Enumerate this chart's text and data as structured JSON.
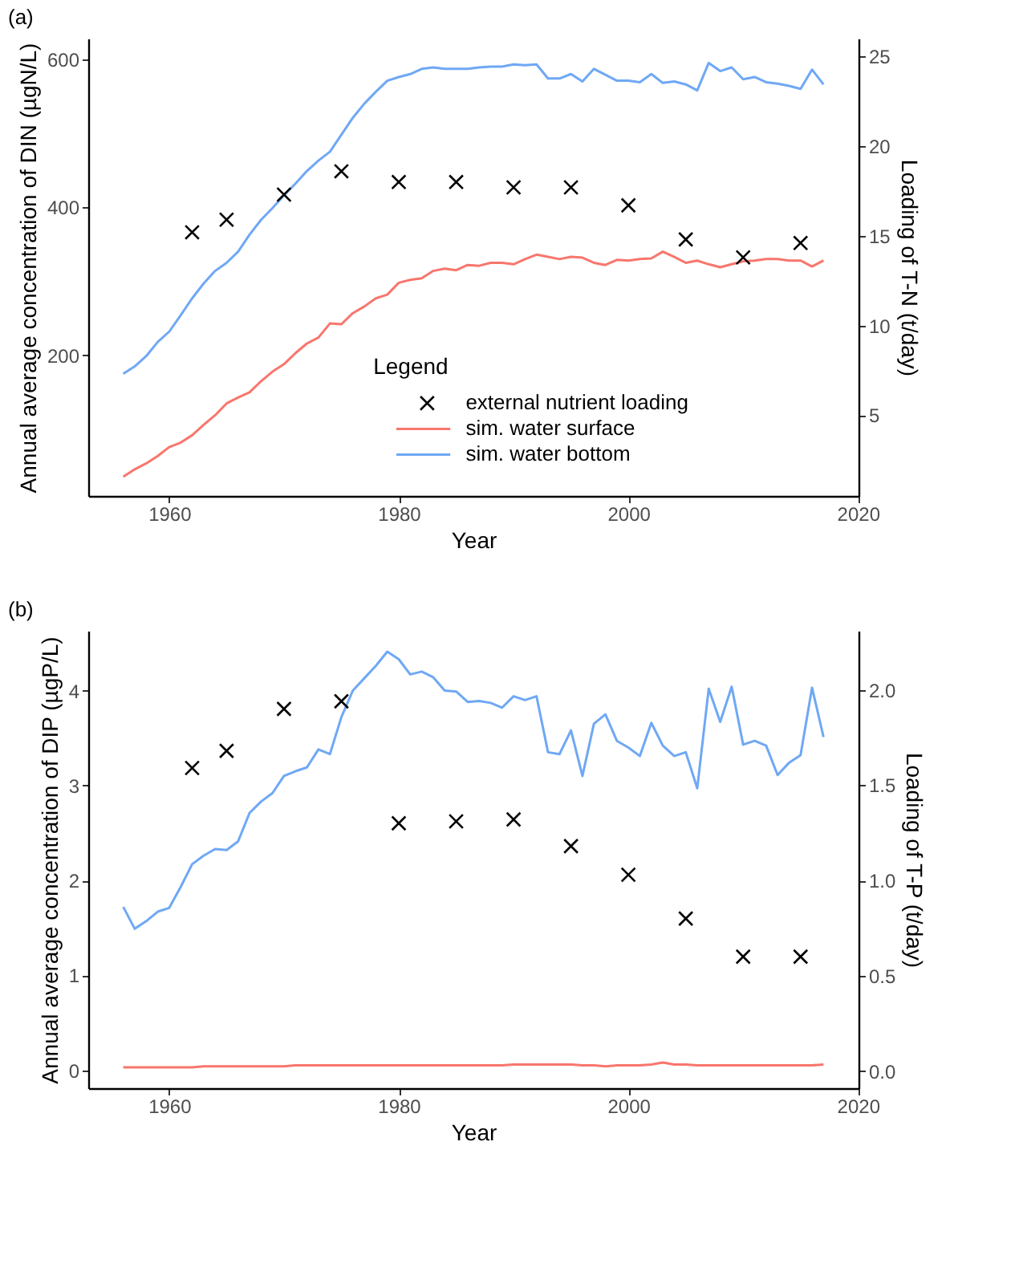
{
  "chart_data": [
    {
      "type": "line",
      "title": "(a)",
      "xlabel": "Year",
      "ylabel": "Annual average concentration of DIN (µgN/L)",
      "y2label": "Loading of T-N (t/day)",
      "legend_title": "Legend",
      "legend": "bottom",
      "grid": false,
      "x": [
        1956,
        1957,
        1958,
        1959,
        1960,
        1961,
        1962,
        1963,
        1964,
        1965,
        1966,
        1967,
        1968,
        1969,
        1970,
        1971,
        1972,
        1973,
        1974,
        1975,
        1976,
        1977,
        1978,
        1979,
        1980,
        1981,
        1982,
        1983,
        1984,
        1985,
        1986,
        1987,
        1988,
        1989,
        1990,
        1991,
        1992,
        1993,
        1994,
        1995,
        1996,
        1997,
        1998,
        1999,
        2000,
        2001,
        2002,
        2003,
        2004,
        2005,
        2006,
        2007,
        2008,
        2009,
        2010,
        2011,
        2012,
        2013,
        2014,
        2015,
        2016,
        2017
      ],
      "xlim": [
        1952.95,
        2020.05
      ],
      "xticks": [
        1960,
        1980,
        2000,
        2020
      ],
      "ylim": [
        10,
        628
      ],
      "yticks": [
        200,
        400,
        600
      ],
      "y2lim": [
        0.5,
        26
      ],
      "y2ticks": [
        5,
        10,
        15,
        20,
        25
      ],
      "series": [
        {
          "name": "external nutrient loading",
          "type": "scatter",
          "marker": "cross",
          "axis": "y2",
          "color": "#000000",
          "x": [
            1962,
            1965,
            1970,
            1975,
            1980,
            1985,
            1990,
            1995,
            2000,
            2005,
            2010,
            2015
          ],
          "values": [
            15.2,
            15.9,
            17.3,
            18.6,
            18.0,
            18.0,
            17.7,
            17.7,
            16.7,
            14.8,
            13.8,
            14.6
          ]
        },
        {
          "name": "sim. water surface",
          "line_style": "solid",
          "axis": "y",
          "color": "#f8766d",
          "values": [
            36,
            46,
            54,
            64,
            76,
            82,
            92,
            106,
            119,
            135,
            143,
            150,
            165,
            178,
            188,
            203,
            216,
            224,
            243,
            242,
            257,
            266,
            277,
            282,
            298,
            302,
            304,
            314,
            317,
            315,
            322,
            321,
            325,
            325,
            323,
            330,
            336,
            333,
            330,
            333,
            332,
            325,
            322,
            329,
            328,
            330,
            331,
            340,
            333,
            325,
            328,
            323,
            319,
            323,
            327,
            328,
            330,
            330,
            328,
            328,
            320,
            328
          ]
        },
        {
          "name": "sim. water bottom",
          "line_style": "solid",
          "axis": "y",
          "color": "#6fa8f5",
          "values": [
            175,
            185,
            199,
            218,
            232,
            254,
            277,
            297,
            314,
            325,
            340,
            363,
            383,
            399,
            416,
            432,
            449,
            463,
            475,
            498,
            521,
            540,
            556,
            571,
            576,
            580,
            587,
            589,
            587,
            587,
            587,
            589,
            590,
            590,
            593,
            592,
            593,
            574,
            574,
            580,
            570,
            587,
            579,
            571,
            571,
            569,
            580,
            568,
            570,
            566,
            558,
            595,
            584,
            589,
            573,
            576,
            569,
            567,
            564,
            560,
            586,
            566
          ]
        }
      ]
    },
    {
      "type": "line",
      "title": "(b)",
      "xlabel": "Year",
      "ylabel": "Annual average concentration of DIP (µgP/L)",
      "y2label": "Loading of T-P (t/day)",
      "grid": false,
      "x": [
        1956,
        1957,
        1958,
        1959,
        1960,
        1961,
        1962,
        1963,
        1964,
        1965,
        1966,
        1967,
        1968,
        1969,
        1970,
        1971,
        1972,
        1973,
        1974,
        1975,
        1976,
        1977,
        1978,
        1979,
        1980,
        1981,
        1982,
        1983,
        1984,
        1985,
        1986,
        1987,
        1988,
        1989,
        1990,
        1991,
        1992,
        1993,
        1994,
        1995,
        1996,
        1997,
        1998,
        1999,
        2000,
        2001,
        2002,
        2003,
        2004,
        2005,
        2006,
        2007,
        2008,
        2009,
        2010,
        2011,
        2012,
        2013,
        2014,
        2015,
        2016,
        2017
      ],
      "xlim": [
        1952.95,
        2020.05
      ],
      "xticks": [
        1960,
        1980,
        2000,
        2020
      ],
      "ylim": [
        -0.19,
        4.63
      ],
      "yticks": [
        0,
        1,
        2,
        3,
        4
      ],
      "y2lim": [
        -0.09,
        2.31
      ],
      "y2ticks": [
        {
          "value": 0,
          "label": "0.0"
        },
        0.5,
        {
          "value": 1,
          "label": "1.0"
        },
        1.5,
        {
          "value": 2,
          "label": "2.0"
        }
      ],
      "series": [
        {
          "type": "scatter",
          "marker": "cross",
          "axis": "y2",
          "color": "#000000",
          "x": [
            1962,
            1965,
            1970,
            1975,
            1980,
            1985,
            1990,
            1995,
            2000,
            2005,
            2010,
            2015
          ],
          "values": [
            1.59,
            1.68,
            1.9,
            1.94,
            1.3,
            1.31,
            1.32,
            1.18,
            1.03,
            0.8,
            0.6,
            0.6
          ]
        },
        {
          "line_style": "solid",
          "axis": "y",
          "color": "#f8766d",
          "values": [
            0.03,
            0.03,
            0.03,
            0.03,
            0.03,
            0.03,
            0.03,
            0.04,
            0.04,
            0.04,
            0.04,
            0.04,
            0.04,
            0.04,
            0.04,
            0.05,
            0.05,
            0.05,
            0.05,
            0.05,
            0.05,
            0.05,
            0.05,
            0.05,
            0.05,
            0.05,
            0.05,
            0.05,
            0.05,
            0.05,
            0.05,
            0.05,
            0.05,
            0.05,
            0.06,
            0.06,
            0.06,
            0.06,
            0.06,
            0.06,
            0.05,
            0.05,
            0.04,
            0.05,
            0.05,
            0.05,
            0.06,
            0.08,
            0.06,
            0.06,
            0.05,
            0.05,
            0.05,
            0.05,
            0.05,
            0.05,
            0.05,
            0.05,
            0.05,
            0.05,
            0.05,
            0.06
          ]
        },
        {
          "line_style": "solid",
          "axis": "y",
          "color": "#6fa8f5",
          "values": [
            1.72,
            1.49,
            1.57,
            1.67,
            1.71,
            1.93,
            2.17,
            2.26,
            2.33,
            2.32,
            2.41,
            2.71,
            2.83,
            2.92,
            3.1,
            3.15,
            3.19,
            3.38,
            3.33,
            3.72,
            4.0,
            4.13,
            4.26,
            4.41,
            4.33,
            4.17,
            4.2,
            4.14,
            4.0,
            3.99,
            3.88,
            3.89,
            3.87,
            3.82,
            3.94,
            3.9,
            3.94,
            3.35,
            3.33,
            3.58,
            3.1,
            3.65,
            3.75,
            3.47,
            3.4,
            3.31,
            3.66,
            3.42,
            3.31,
            3.35,
            2.97,
            4.02,
            3.67,
            4.04,
            3.43,
            3.47,
            3.42,
            3.11,
            3.24,
            3.32,
            4.03,
            3.51
          ]
        }
      ]
    }
  ]
}
